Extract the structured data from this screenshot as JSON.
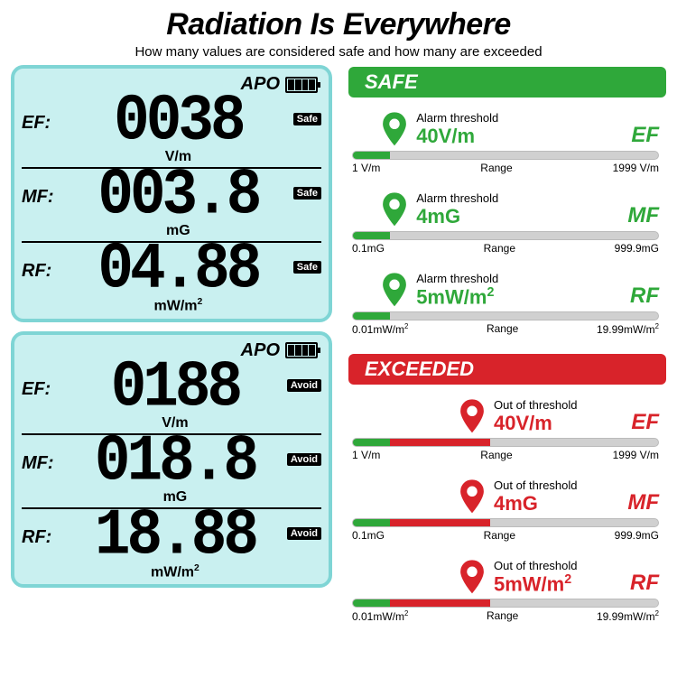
{
  "header": {
    "title": "Radiation Is Everywhere",
    "subtitle": "How many values are considered safe and how many are exceeded"
  },
  "colors": {
    "lcd_bg": "#c9f0f0",
    "lcd_border": "#7fd5d5",
    "safe": "#2fa83a",
    "safe_dark": "#1e7a28",
    "exceed": "#d8232a",
    "exceed_dark": "#a01015",
    "bar_bg": "#d0d0d0",
    "text": "#111111"
  },
  "lcds": [
    {
      "apo": "APO",
      "battery_bars": 4,
      "rows": [
        {
          "label": "EF:",
          "digits": "0038",
          "unit": "V/m",
          "tag": "Safe"
        },
        {
          "label": "MF:",
          "digits": "003.8",
          "unit": "mG",
          "tag": "Safe"
        },
        {
          "label": "RF:",
          "digits": "04.88",
          "unit": "mW/m²",
          "tag": "Safe"
        }
      ]
    },
    {
      "apo": "APO",
      "battery_bars": 4,
      "rows": [
        {
          "label": "EF:",
          "digits": "0188",
          "unit": "V/m",
          "tag": "Avoid"
        },
        {
          "label": "MF:",
          "digits": "018.8",
          "unit": "mG",
          "tag": "Avoid"
        },
        {
          "label": "RF:",
          "digits": "18.88",
          "unit": "mW/m²",
          "tag": "Avoid"
        }
      ]
    }
  ],
  "sections": [
    {
      "badge": "SAFE",
      "color": "#2fa83a",
      "pin_fill_pct": 12,
      "bar_color": "#2fa83a",
      "top_label": "Alarm threshold",
      "rows": [
        {
          "threshold": "40V/m",
          "type": "EF",
          "min": "1 V/m",
          "mid": "Range",
          "max": "1999 V/m",
          "fill_pct": 12
        },
        {
          "threshold": "4mG",
          "type": "MF",
          "min": "0.1mG",
          "mid": "Range",
          "max": "999.9mG",
          "fill_pct": 12
        },
        {
          "threshold": "5mW/m²",
          "type": "RF",
          "min": "0.01mW/m²",
          "mid": "Range",
          "max": "19.99mW/m²",
          "fill_pct": 12
        }
      ]
    },
    {
      "badge": "EXCEEDED",
      "color": "#d8232a",
      "pin_fill_pct": 45,
      "bar_color": "#d8232a",
      "top_label": "Out of threshold",
      "rows": [
        {
          "threshold": "40V/m",
          "type": "EF",
          "min": "1 V/m",
          "mid": "Range",
          "max": "1999 V/m",
          "fill_pct": 45,
          "green_pct": 12
        },
        {
          "threshold": "4mG",
          "type": "MF",
          "min": "0.1mG",
          "mid": "Range",
          "max": "999.9mG",
          "fill_pct": 45,
          "green_pct": 12
        },
        {
          "threshold": "5mW/m²",
          "type": "RF",
          "min": "0.01mW/m²",
          "mid": "Range",
          "max": "19.99mW/m²",
          "fill_pct": 45,
          "green_pct": 12
        }
      ]
    }
  ]
}
